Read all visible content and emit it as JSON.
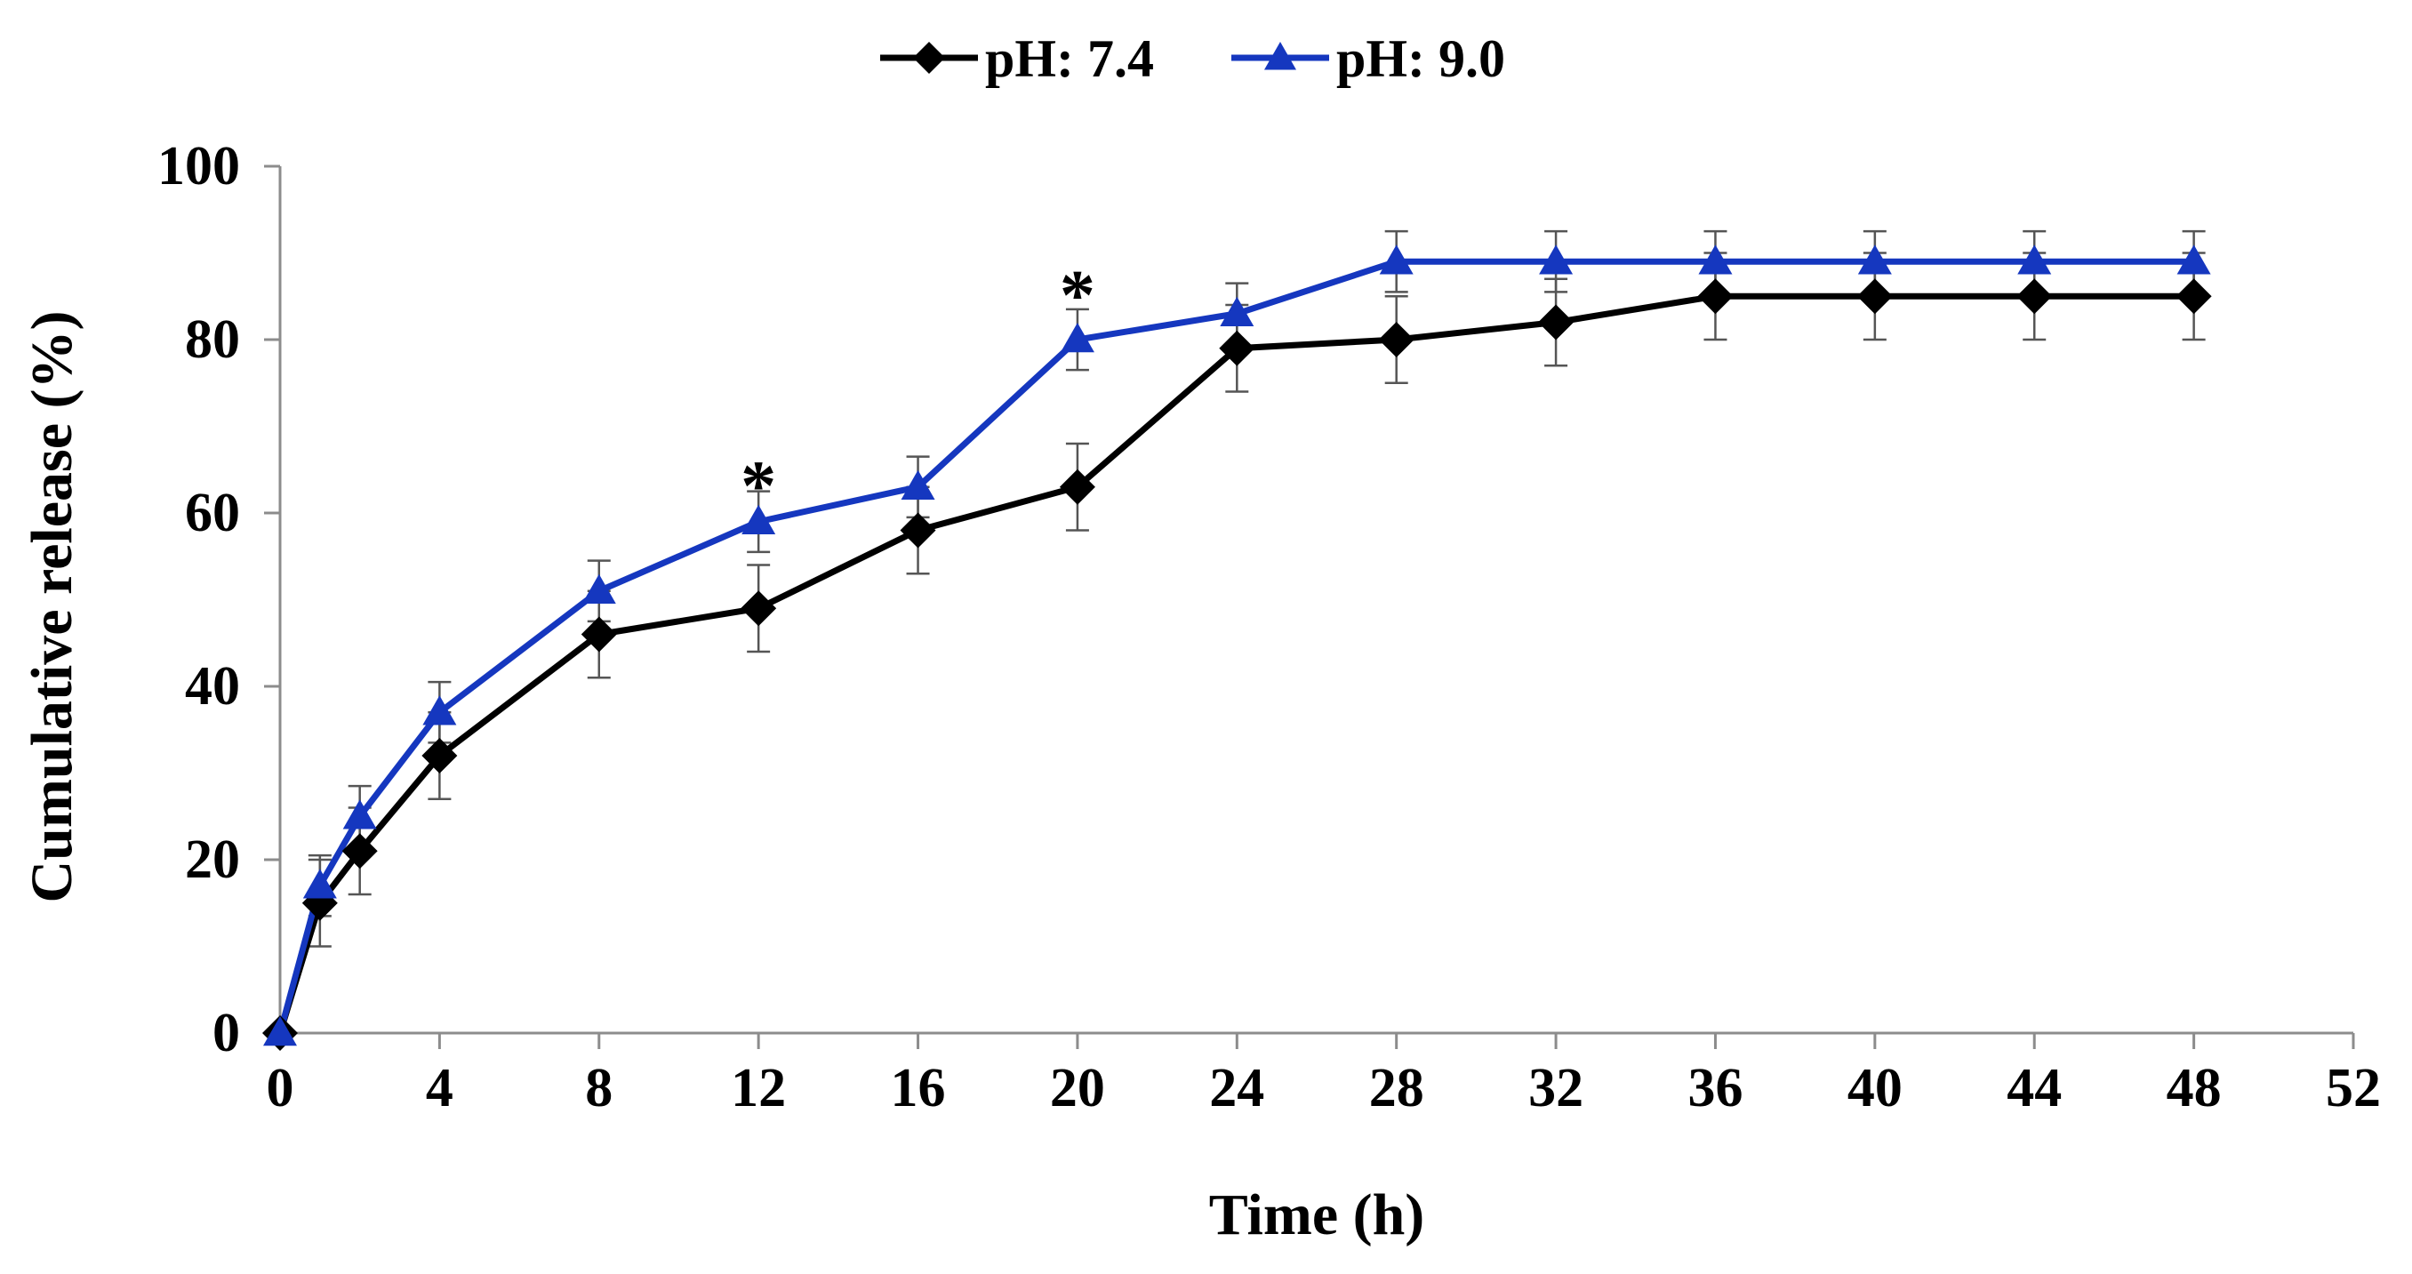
{
  "chart_data": {
    "type": "line",
    "title": "",
    "xlabel": "Time (h)",
    "ylabel": "Cumulative release (%)",
    "xlim": [
      0,
      52
    ],
    "ylim": [
      0,
      100
    ],
    "xticks": [
      0,
      4,
      8,
      12,
      16,
      20,
      24,
      28,
      32,
      36,
      40,
      44,
      48,
      52
    ],
    "yticks": [
      0,
      20,
      40,
      60,
      80,
      100
    ],
    "grid": false,
    "legend_position": "top-center",
    "series": [
      {
        "name": "pH: 7.4",
        "color": "#000000",
        "marker": "diamond",
        "x": [
          0,
          1,
          2,
          4,
          8,
          12,
          16,
          20,
          24,
          28,
          32,
          36,
          40,
          44,
          48
        ],
        "y": [
          0,
          15,
          21,
          32,
          46,
          49,
          58,
          63,
          79,
          80,
          82,
          85,
          85,
          85,
          85
        ],
        "error": [
          0,
          5,
          5,
          5,
          5,
          5,
          5,
          5,
          5,
          5,
          5,
          5,
          5,
          5,
          5
        ]
      },
      {
        "name": "pH: 9.0",
        "color": "#1537bf",
        "marker": "triangle",
        "x": [
          0,
          1,
          2,
          4,
          8,
          12,
          16,
          20,
          24,
          28,
          32,
          36,
          40,
          44,
          48
        ],
        "y": [
          0,
          17,
          25,
          37,
          51,
          59,
          63,
          80,
          83,
          89,
          89,
          89,
          89,
          89,
          89
        ],
        "error": [
          0,
          3.5,
          3.5,
          3.5,
          3.5,
          3.5,
          3.5,
          3.5,
          3.5,
          3.5,
          3.5,
          3.5,
          3.5,
          3.5,
          3.5
        ]
      }
    ],
    "annotations": [
      {
        "text": "*",
        "x": 12,
        "y": 65
      },
      {
        "text": "*",
        "x": 20,
        "y": 87
      }
    ]
  }
}
